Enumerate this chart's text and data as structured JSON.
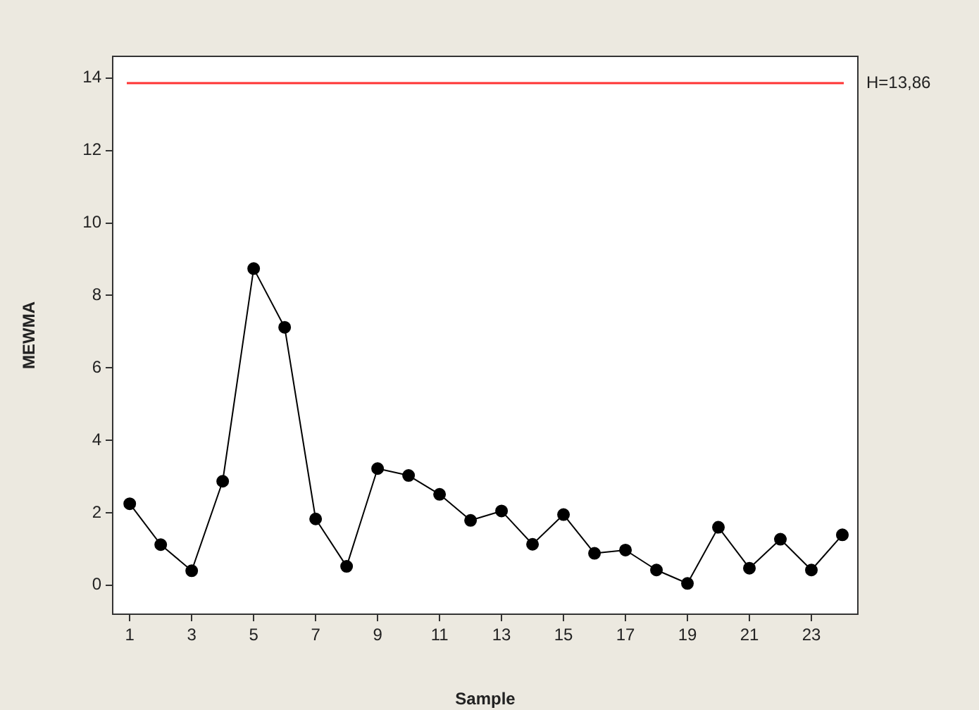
{
  "chart_data": {
    "type": "line",
    "xlabel": "Sample",
    "ylabel": "MEWMA",
    "x": [
      1,
      2,
      3,
      4,
      5,
      6,
      7,
      8,
      9,
      10,
      11,
      12,
      13,
      14,
      15,
      16,
      17,
      18,
      19,
      20,
      21,
      22,
      23,
      24
    ],
    "series": [
      {
        "color": "#000000",
        "values": [
          2.25,
          1.12,
          0.4,
          2.87,
          8.74,
          7.12,
          1.83,
          0.52,
          3.22,
          3.03,
          2.51,
          1.79,
          2.05,
          1.13,
          1.95,
          0.88,
          0.97,
          0.42,
          0.05,
          1.6,
          0.47,
          1.27,
          0.42,
          1.39
        ]
      }
    ],
    "xlim": [
      0.45,
      24.5
    ],
    "xticks": [
      1,
      3,
      5,
      7,
      9,
      11,
      13,
      15,
      17,
      19,
      21,
      23
    ],
    "ylim": [
      -0.8,
      14.6
    ],
    "yticks": [
      0,
      2,
      4,
      6,
      8,
      10,
      12,
      14
    ],
    "ref_lines": [
      {
        "axis": "y",
        "value": 13.86,
        "label": "H=13,86",
        "color": "#ff3333"
      }
    ],
    "grid": false,
    "legend": false,
    "marker": "circle",
    "line_style": "solid"
  }
}
